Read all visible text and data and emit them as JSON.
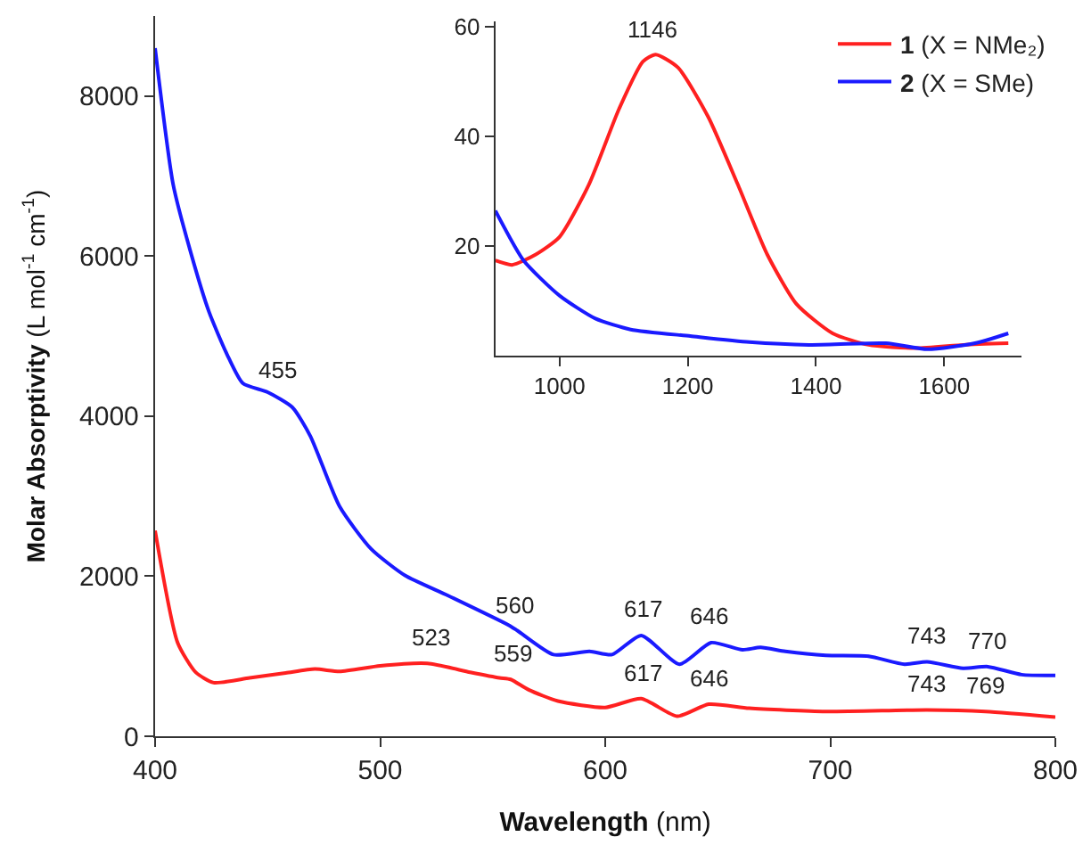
{
  "chart_data": [
    {
      "type": "line",
      "xlabel": "Wavelength (nm)",
      "ylabel": "Molar Absorptivity (L mol$^{-1}$ cm$^{-1}$)",
      "xlim": [
        400,
        800
      ],
      "xticks": [
        400,
        500,
        600,
        700,
        800
      ],
      "ylim": [
        0,
        9000
      ],
      "yticks": [
        0,
        2000,
        4000,
        6000,
        8000
      ],
      "legend": "top right",
      "marker": "none",
      "line_style": "solid",
      "series": [
        {
          "name": "1 (X = NMe₂)",
          "color": "#ff2020",
          "x": [
            400,
            410,
            418,
            426,
            442,
            458,
            471,
            482,
            500,
            521,
            540,
            553,
            558,
            566,
            579,
            600,
            616,
            632,
            646,
            664,
            698,
            743,
            769,
            800
          ],
          "values": [
            2570,
            1170,
            800,
            670,
            730,
            790,
            840,
            810,
            880,
            910,
            800,
            730,
            710,
            580,
            440,
            360,
            470,
            250,
            400,
            350,
            310,
            330,
            310,
            240
          ]
        },
        {
          "name": "2 (X = SMe)",
          "color": "#1a1aff",
          "x": [
            400,
            408,
            416,
            424,
            432,
            439,
            450,
            461,
            469,
            482,
            496,
            511,
            530,
            557,
            561,
            577,
            593,
            603,
            616,
            633,
            647,
            661,
            669,
            680,
            698,
            717,
            733,
            743,
            759,
            770,
            785,
            800
          ],
          "values": [
            8600,
            6900,
            6030,
            5300,
            4770,
            4410,
            4300,
            4110,
            3750,
            2870,
            2340,
            2010,
            1760,
            1390,
            1320,
            1020,
            1060,
            1020,
            1260,
            900,
            1170,
            1080,
            1110,
            1060,
            1010,
            1000,
            900,
            930,
            850,
            870,
            770,
            760
          ]
        }
      ],
      "annotations": [
        {
          "text": "455",
          "x": 455,
          "y": 4250
        },
        {
          "text": "560",
          "x": 560,
          "y": 1320
        },
        {
          "text": "617",
          "x": 617,
          "y": 1260
        },
        {
          "text": "646",
          "x": 646,
          "y": 1170
        },
        {
          "text": "743",
          "x": 743,
          "y": 930
        },
        {
          "text": "770",
          "x": 770,
          "y": 870
        },
        {
          "text": "523",
          "x": 523,
          "y": 910
        },
        {
          "text": "559",
          "x": 559,
          "y": 710
        },
        {
          "text": "617",
          "x": 617,
          "y": 470
        },
        {
          "text": "646",
          "x": 646,
          "y": 400
        },
        {
          "text": "743",
          "x": 743,
          "y": 330
        },
        {
          "text": "769",
          "x": 769,
          "y": 310
        }
      ]
    },
    {
      "type": "line",
      "xlim": [
        900,
        1720
      ],
      "xticks": [
        1000,
        1200,
        1400,
        1600
      ],
      "ylim": [
        0,
        61
      ],
      "yticks": [
        20,
        40,
        60
      ],
      "legend": false,
      "marker": "none",
      "line_style": "solid",
      "series": [
        {
          "color": "#ff2020",
          "x": [
            900,
            926,
            963,
            1000,
            1046,
            1093,
            1130,
            1150,
            1185,
            1232,
            1278,
            1324,
            1370,
            1426,
            1482,
            1556,
            1630,
            1700
          ],
          "values": [
            17.3,
            16.5,
            18.4,
            21.6,
            31.2,
            45,
            53.6,
            54.9,
            52.5,
            43.5,
            31.2,
            18.4,
            9.3,
            4,
            1.9,
            1.3,
            1.9,
            2.2
          ]
        },
        {
          "color": "#1a1aff",
          "x": [
            900,
            944,
            1000,
            1056,
            1111,
            1204,
            1296,
            1389,
            1509,
            1574,
            1648,
            1700
          ],
          "values": [
            26.4,
            17.3,
            10.9,
            6.7,
            4.7,
            3.5,
            2.4,
            1.9,
            2.2,
            1.1,
            2.2,
            4
          ]
        }
      ],
      "annotations": [
        {
          "text": "1146",
          "x": 1146,
          "y": 54.9
        }
      ]
    }
  ]
}
